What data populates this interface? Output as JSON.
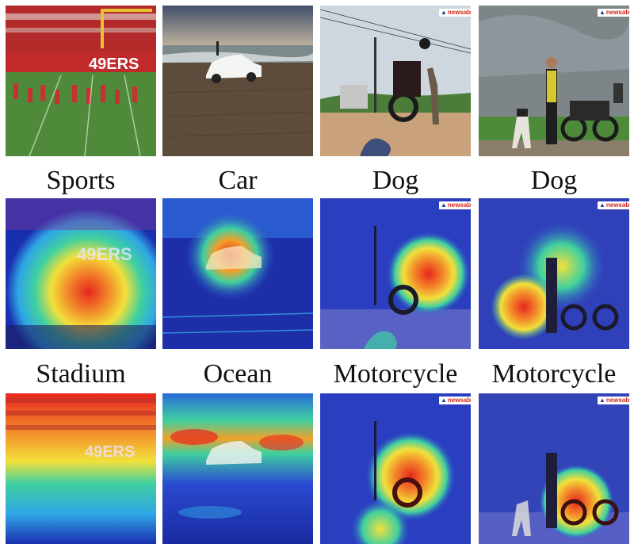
{
  "captions": {
    "row1": [
      "Sports",
      "Car",
      "Dog",
      "Dog"
    ],
    "row2": [
      "Stadium",
      "Ocean",
      "Motorcycle",
      "Motorcycle"
    ]
  },
  "photo_text": {
    "jersey_number": "49ERS",
    "watermark_brand": "newsable",
    "watermark_sub": "asianet"
  },
  "heatmap_colors": {
    "cold": "#1a2fb0",
    "cool": "#2fa6e6",
    "mid": "#3fd0a0",
    "warm": "#f2e03a",
    "hot": "#e8261e"
  }
}
